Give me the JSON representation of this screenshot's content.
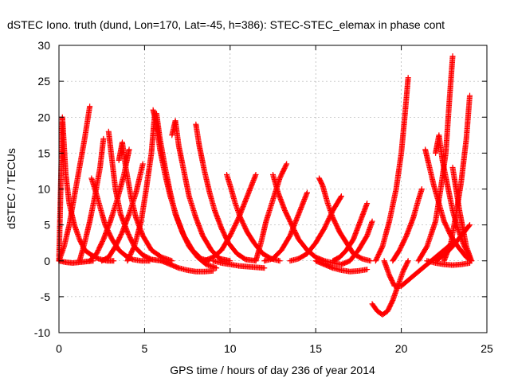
{
  "chart_data": {
    "type": "scatter",
    "title": "dSTEC Iono. truth (dund, Lon=170, Lat=-45, h=386): STEC-STEC_elemax in phase cont",
    "xlabel": "GPS time / hours of day 236 of year 2014",
    "ylabel": "dSTEC  / TECUs",
    "xlim": [
      0,
      25
    ],
    "ylim": [
      -10,
      30
    ],
    "xticks": [
      0,
      5,
      10,
      15,
      20,
      25
    ],
    "yticks": [
      -10,
      -5,
      0,
      5,
      10,
      15,
      20,
      25,
      30
    ],
    "grid": true,
    "marker": "+",
    "color": "#ff0000",
    "series": [
      {
        "x": [
          0.0,
          0.2,
          0.4,
          0.6,
          0.9,
          1.2,
          1.5,
          1.9,
          2.3,
          2.8,
          3.2
        ],
        "y": [
          0.0,
          20.0,
          12.0,
          8.0,
          5.0,
          3.0,
          1.5,
          0.8,
          0.3,
          0.0,
          0.0
        ]
      },
      {
        "x": [
          0.0,
          0.3,
          0.6,
          0.9,
          1.2,
          1.5,
          1.8
        ],
        "y": [
          0.0,
          2.0,
          5.0,
          9.0,
          13.0,
          17.0,
          21.5
        ]
      },
      {
        "x": [
          0.0,
          0.4,
          0.8,
          1.2,
          1.6,
          2.0
        ],
        "y": [
          0.0,
          -0.2,
          -0.3,
          -0.2,
          -0.1,
          0.0
        ]
      },
      {
        "x": [
          1.9,
          2.1,
          2.4,
          2.7,
          3.1,
          3.5,
          3.9,
          4.3,
          4.8,
          5.3
        ],
        "y": [
          11.5,
          10.0,
          7.5,
          5.0,
          3.0,
          1.5,
          0.7,
          0.2,
          0.0,
          0.0
        ]
      },
      {
        "x": [
          1.2,
          1.5,
          1.8,
          2.1,
          2.4,
          2.6
        ],
        "y": [
          0.0,
          2.5,
          5.5,
          9.0,
          13.0,
          17.0
        ]
      },
      {
        "x": [
          2.9,
          3.1,
          3.3,
          3.6,
          4.0,
          4.4,
          4.9,
          5.4,
          6.0
        ],
        "y": [
          18.0,
          14.0,
          10.0,
          6.5,
          4.0,
          2.0,
          0.8,
          0.2,
          0.0
        ]
      },
      {
        "x": [
          3.5,
          3.7,
          3.9,
          4.2,
          4.5,
          4.9,
          5.4,
          6.0,
          6.6
        ],
        "y": [
          14.0,
          16.5,
          13.0,
          9.0,
          6.0,
          3.5,
          1.5,
          0.5,
          0.0
        ]
      },
      {
        "x": [
          1.8,
          2.2,
          2.6,
          3.0,
          3.4,
          3.8,
          4.1
        ],
        "y": [
          0.0,
          1.0,
          3.0,
          5.5,
          8.5,
          12.0,
          15.5
        ]
      },
      {
        "x": [
          2.5,
          2.9,
          3.3,
          3.7,
          4.1,
          4.5,
          4.9
        ],
        "y": [
          0.0,
          0.5,
          2.0,
          4.0,
          6.5,
          9.5,
          13.5
        ]
      },
      {
        "x": [
          5.5,
          5.7,
          5.9,
          6.2,
          6.5,
          6.9,
          7.3,
          7.8,
          8.3,
          8.8
        ],
        "y": [
          21.0,
          19.0,
          15.5,
          12.0,
          9.0,
          6.0,
          3.5,
          1.5,
          0.3,
          0.0
        ]
      },
      {
        "x": [
          5.7,
          5.9,
          6.2,
          6.5,
          6.8,
          7.2,
          7.6,
          8.1,
          8.6,
          9.2
        ],
        "y": [
          20.5,
          17.0,
          13.0,
          9.5,
          6.5,
          4.0,
          2.0,
          0.5,
          -0.5,
          -1.0
        ]
      },
      {
        "x": [
          4.0,
          4.4,
          4.8,
          5.1,
          5.4,
          5.6
        ],
        "y": [
          0.0,
          2.0,
          5.5,
          10.0,
          15.0,
          20.5
        ]
      },
      {
        "x": [
          6.6,
          6.8,
          7.0,
          7.3,
          7.6,
          8.0,
          8.4,
          8.9,
          9.4,
          10.0
        ],
        "y": [
          17.5,
          19.5,
          16.0,
          12.5,
          9.0,
          6.0,
          3.5,
          1.5,
          0.3,
          0.0
        ]
      },
      {
        "x": [
          8.0,
          8.2,
          8.5,
          8.8,
          9.1,
          9.5,
          9.9,
          10.4,
          10.9,
          11.5
        ],
        "y": [
          19.0,
          16.0,
          12.5,
          9.5,
          7.0,
          4.5,
          2.5,
          1.0,
          0.2,
          0.0
        ]
      },
      {
        "x": [
          9.8,
          10.0,
          10.3,
          10.6,
          11.0,
          11.4,
          11.9,
          12.4,
          12.9
        ],
        "y": [
          12.0,
          10.5,
          8.0,
          6.0,
          4.0,
          2.5,
          1.0,
          0.3,
          0.0
        ]
      },
      {
        "x": [
          6.0,
          6.5,
          7.0,
          7.5,
          8.0,
          8.5,
          9.0
        ],
        "y": [
          0.0,
          -0.5,
          -1.0,
          -1.3,
          -1.5,
          -1.5,
          -1.4
        ]
      },
      {
        "x": [
          8.5,
          9.0,
          9.5,
          10.0,
          10.5,
          11.0,
          11.5
        ],
        "y": [
          0.0,
          0.5,
          1.5,
          3.5,
          6.0,
          9.0,
          12.0
        ]
      },
      {
        "x": [
          9.0,
          9.5,
          10.0,
          10.5,
          11.0,
          11.5,
          12.0
        ],
        "y": [
          0.0,
          -0.3,
          -0.5,
          -0.7,
          -0.8,
          -0.9,
          -1.0
        ]
      },
      {
        "x": [
          11.5,
          11.8,
          12.1,
          12.5,
          12.9,
          13.3
        ],
        "y": [
          0.0,
          2.5,
          5.5,
          8.5,
          11.5,
          13.5
        ]
      },
      {
        "x": [
          12.5,
          12.8,
          13.2,
          13.6,
          14.0,
          14.5,
          15.0,
          15.5
        ],
        "y": [
          12.0,
          9.5,
          7.0,
          5.0,
          3.0,
          1.5,
          0.5,
          0.0
        ]
      },
      {
        "x": [
          12.0,
          12.5,
          13.0,
          13.5,
          14.0,
          14.5
        ],
        "y": [
          0.0,
          0.3,
          1.5,
          3.5,
          6.5,
          9.5
        ]
      },
      {
        "x": [
          13.5,
          14.0,
          14.5,
          15.0,
          15.5,
          16.0,
          16.5
        ],
        "y": [
          0.0,
          0.3,
          1.0,
          2.5,
          4.5,
          7.0,
          9.0
        ]
      },
      {
        "x": [
          15.2,
          15.4,
          15.7,
          16.0,
          16.4,
          16.8,
          17.2,
          17.7,
          18.2
        ],
        "y": [
          11.5,
          10.5,
          8.0,
          6.0,
          4.0,
          2.5,
          1.0,
          0.3,
          0.0
        ]
      },
      {
        "x": [
          15.0,
          15.5,
          16.0,
          16.5,
          17.0,
          17.5,
          18.0
        ],
        "y": [
          0.0,
          -0.5,
          -1.0,
          -1.3,
          -1.5,
          -1.4,
          -1.2
        ]
      },
      {
        "x": [
          16.0,
          16.4,
          16.8,
          17.2,
          17.6,
          18.0
        ],
        "y": [
          0.0,
          0.5,
          1.5,
          3.0,
          5.5,
          8.0
        ]
      },
      {
        "x": [
          15.5,
          16.0,
          16.5,
          17.0,
          17.5,
          18.0,
          18.3
        ],
        "y": [
          0.0,
          -0.3,
          -0.5,
          0.0,
          1.5,
          3.5,
          5.5
        ]
      },
      {
        "x": [
          18.3,
          18.6,
          18.9,
          19.2,
          19.5,
          19.8,
          20.1,
          20.4
        ],
        "y": [
          -6.0,
          -7.0,
          -7.5,
          -7.0,
          -5.5,
          -3.5,
          -1.5,
          0.0
        ]
      },
      {
        "x": [
          18.5,
          18.9,
          19.3,
          19.7,
          20.0,
          20.2,
          20.4
        ],
        "y": [
          0.0,
          2.0,
          5.5,
          10.0,
          15.0,
          20.0,
          25.5
        ]
      },
      {
        "x": [
          19.0,
          19.3,
          19.6,
          20.0,
          20.5,
          21.0,
          21.5,
          22.0,
          22.5,
          23.0
        ],
        "y": [
          0.0,
          -2.0,
          -3.5,
          -3.5,
          -2.5,
          -1.5,
          -0.5,
          0.5,
          1.5,
          2.5
        ]
      },
      {
        "x": [
          19.5,
          19.9,
          20.3,
          20.7,
          21.0,
          21.2
        ],
        "y": [
          0.0,
          1.5,
          3.5,
          6.0,
          8.5,
          10.0
        ]
      },
      {
        "x": [
          21.4,
          21.6,
          21.9,
          22.2,
          22.5,
          22.9,
          23.3,
          23.8,
          24.1
        ],
        "y": [
          15.5,
          13.5,
          10.5,
          8.0,
          5.5,
          3.5,
          2.0,
          0.5,
          0.0
        ]
      },
      {
        "x": [
          22.0,
          22.2,
          22.4,
          22.7,
          23.0,
          23.3,
          23.6,
          24.0
        ],
        "y": [
          15.0,
          17.5,
          14.0,
          10.5,
          7.0,
          4.5,
          2.5,
          0.5
        ]
      },
      {
        "x": [
          21.0,
          21.5,
          22.0,
          22.3,
          22.6,
          22.8,
          23.0
        ],
        "y": [
          0.0,
          2.0,
          5.5,
          10.0,
          15.0,
          22.0,
          28.5
        ]
      },
      {
        "x": [
          22.5,
          22.9,
          23.2,
          23.5,
          23.8,
          24.0
        ],
        "y": [
          0.0,
          2.5,
          6.5,
          11.0,
          17.0,
          23.0
        ]
      },
      {
        "x": [
          23.0,
          23.2,
          23.4,
          23.6,
          23.8,
          24.1
        ],
        "y": [
          13.0,
          10.0,
          7.0,
          4.5,
          2.0,
          0.0
        ]
      },
      {
        "x": [
          21.5,
          22.0,
          22.5,
          23.0,
          23.5,
          24.0
        ],
        "y": [
          0.0,
          -0.3,
          -0.5,
          -0.6,
          -0.5,
          -0.3
        ]
      },
      {
        "x": [
          22.0,
          22.5,
          23.0,
          23.5,
          24.0
        ],
        "y": [
          0.0,
          0.8,
          2.0,
          3.5,
          5.0
        ]
      }
    ]
  }
}
